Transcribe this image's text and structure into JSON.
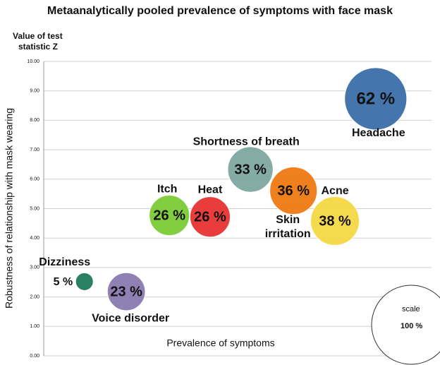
{
  "chart_data": {
    "type": "bubble",
    "title": "Metaanalytically pooled prevalence of symptoms with face mask",
    "y_axis_title": [
      "Value of test",
      "statistic Z"
    ],
    "y_label": "Robustness of relationship with mask wearing",
    "x_label": "Prevalence of symptoms",
    "categories": [
      "Dizziness",
      "Voice disorder",
      "Itch",
      "Heat",
      "Shortness of breath",
      "Skin irritation",
      "Acne",
      "Headache"
    ],
    "x": [
      10.5,
      21.3,
      32.4,
      42.9,
      53.3,
      64.4,
      75.1,
      85.6
    ],
    "values": [
      2.52,
      2.18,
      4.77,
      4.72,
      6.33,
      5.61,
      4.58,
      8.73
    ],
    "sizes": [
      5,
      23,
      26,
      26,
      33,
      36,
      38,
      62
    ],
    "value_labels": [
      "5 %",
      "23 %",
      "26 %",
      "26 %",
      "33 %",
      "36 %",
      "38 %",
      "62 %"
    ],
    "colors": [
      "#1f7a5a",
      "#8a7bb0",
      "#7ccc35",
      "#e83232",
      "#7ea7a0",
      "#f07a12",
      "#f6d944",
      "#3b6ea8"
    ],
    "xlim": [
      0,
      100
    ],
    "ylim": [
      0,
      10
    ],
    "yticks": [
      {
        "value": 0,
        "label": "0.00"
      },
      {
        "value": 1,
        "label": "1.00"
      },
      {
        "value": 2,
        "label": "2.00"
      },
      {
        "value": 3,
        "label": "3.00"
      },
      {
        "value": 4,
        "label": "4.00"
      },
      {
        "value": 5,
        "label": "5.00"
      },
      {
        "value": 6,
        "label": "6.00"
      },
      {
        "value": 7,
        "label": "7.00"
      },
      {
        "value": 8,
        "label": "8.00"
      },
      {
        "value": 9,
        "label": "9.00"
      },
      {
        "value": 10,
        "label": "10.00"
      }
    ],
    "grid": true,
    "size_legend": {
      "label": "scale",
      "value": 100,
      "value_label": "100 %"
    }
  }
}
